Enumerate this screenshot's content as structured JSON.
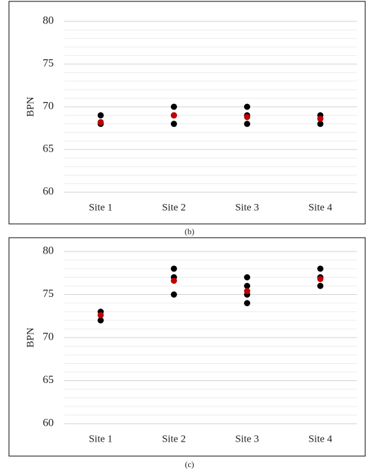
{
  "chart_data": [
    {
      "type": "scatter",
      "caption": "(b)",
      "ylabel": "BPN",
      "categories": [
        "Site 1",
        "Site 2",
        "Site 3",
        "Site 4"
      ],
      "ylim": [
        60,
        80
      ],
      "yticks": [
        60,
        65,
        70,
        75,
        80
      ],
      "minor_yticks": [
        61,
        62,
        63,
        64,
        66,
        67,
        68,
        69,
        71,
        72,
        73,
        74,
        76,
        77,
        78,
        79
      ],
      "grid": true,
      "series": [
        {
          "color": "#000000",
          "values": [
            69,
            70,
            70,
            69
          ]
        },
        {
          "color": "#000000",
          "values": [
            68,
            68,
            68,
            68
          ]
        },
        {
          "color": "#000000",
          "values": [
            null,
            69,
            69,
            null
          ]
        },
        {
          "color": "#c00000",
          "values": [
            68.2,
            69,
            68.8,
            68.6
          ]
        }
      ]
    },
    {
      "type": "scatter",
      "caption": "(c)",
      "ylabel": "BPN",
      "categories": [
        "Site 1",
        "Site 2",
        "Site 3",
        "Site 4"
      ],
      "ylim": [
        60,
        80
      ],
      "yticks": [
        60,
        65,
        70,
        75,
        80
      ],
      "minor_yticks": [
        61,
        62,
        63,
        64,
        66,
        67,
        68,
        69,
        71,
        72,
        73,
        74,
        76,
        77,
        78,
        79
      ],
      "grid": true,
      "series": [
        {
          "color": "#000000",
          "values": [
            73,
            78,
            77,
            78
          ]
        },
        {
          "color": "#000000",
          "values": [
            72,
            77,
            76,
            77
          ]
        },
        {
          "color": "#000000",
          "values": [
            null,
            75,
            75,
            76
          ]
        },
        {
          "color": "#000000",
          "values": [
            null,
            null,
            74,
            null
          ]
        },
        {
          "color": "#c00000",
          "values": [
            72.6,
            76.6,
            75.4,
            76.8
          ]
        }
      ]
    }
  ]
}
